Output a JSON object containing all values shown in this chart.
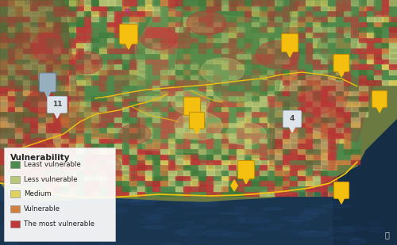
{
  "figsize": [
    5.0,
    3.09
  ],
  "dpi": 100,
  "legend_title": "Vulnerability",
  "legend_items": [
    {
      "label": "Least vulnerable",
      "color": "#4d8b4d"
    },
    {
      "label": "Less vulnerable",
      "color": "#b8c878"
    },
    {
      "label": "Medium",
      "color": "#e0d060"
    },
    {
      "label": "Vulnerable",
      "color": "#d08040"
    },
    {
      "label": "The most vulnerable",
      "color": "#c03838"
    }
  ],
  "ocean_color": "#1e3d5c",
  "ocean_color2": "#162d46",
  "border_color": "#f0c010",
  "terrain_colors": [
    "#c03838",
    "#4d8b4d",
    "#b8c878",
    "#e0d060",
    "#d08040",
    "#3a7a3a",
    "#b03030"
  ],
  "terrain_weights": [
    0.28,
    0.22,
    0.18,
    0.08,
    0.1,
    0.09,
    0.05
  ]
}
